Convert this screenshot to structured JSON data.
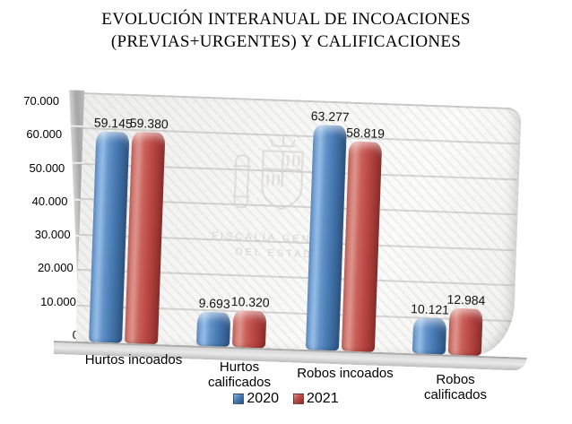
{
  "title": {
    "line1": "EVOLUCIÓN INTERANUAL DE INCOACIONES",
    "line2": "(PREVIAS+URGENTES) Y CALIFICACIONES"
  },
  "watermark": {
    "line1": "FISCALÍA GENERAL",
    "line2": "DEL ESTADO"
  },
  "chart_data": {
    "type": "bar",
    "style": "3d-column",
    "title": "EVOLUCIÓN INTERANUAL DE INCOACIONES (PREVIAS+URGENTES) Y CALIFICACIONES",
    "categories": [
      "Hurtos incoados",
      "Hurtos calificados",
      "Robos incoados",
      "Robos calificados"
    ],
    "series": [
      {
        "name": "2020",
        "color": "#4a7cb5",
        "values": [
          59145,
          9693,
          63277,
          10121
        ],
        "value_labels": [
          "59.145",
          "9.693",
          "63.277",
          "10.121"
        ]
      },
      {
        "name": "2021",
        "color": "#bd4a46",
        "values": [
          59380,
          10320,
          58819,
          12984
        ],
        "value_labels": [
          "59.380",
          "10.320",
          "58.819",
          "12.984"
        ]
      }
    ],
    "ylim": [
      0,
      70000
    ],
    "ytick_step": 10000,
    "ytick_labels": [
      "0",
      "10.000",
      "20.000",
      "30.000",
      "40.000",
      "50.000",
      "60.000",
      "70.000"
    ],
    "grid": true,
    "legend_position": "bottom"
  }
}
